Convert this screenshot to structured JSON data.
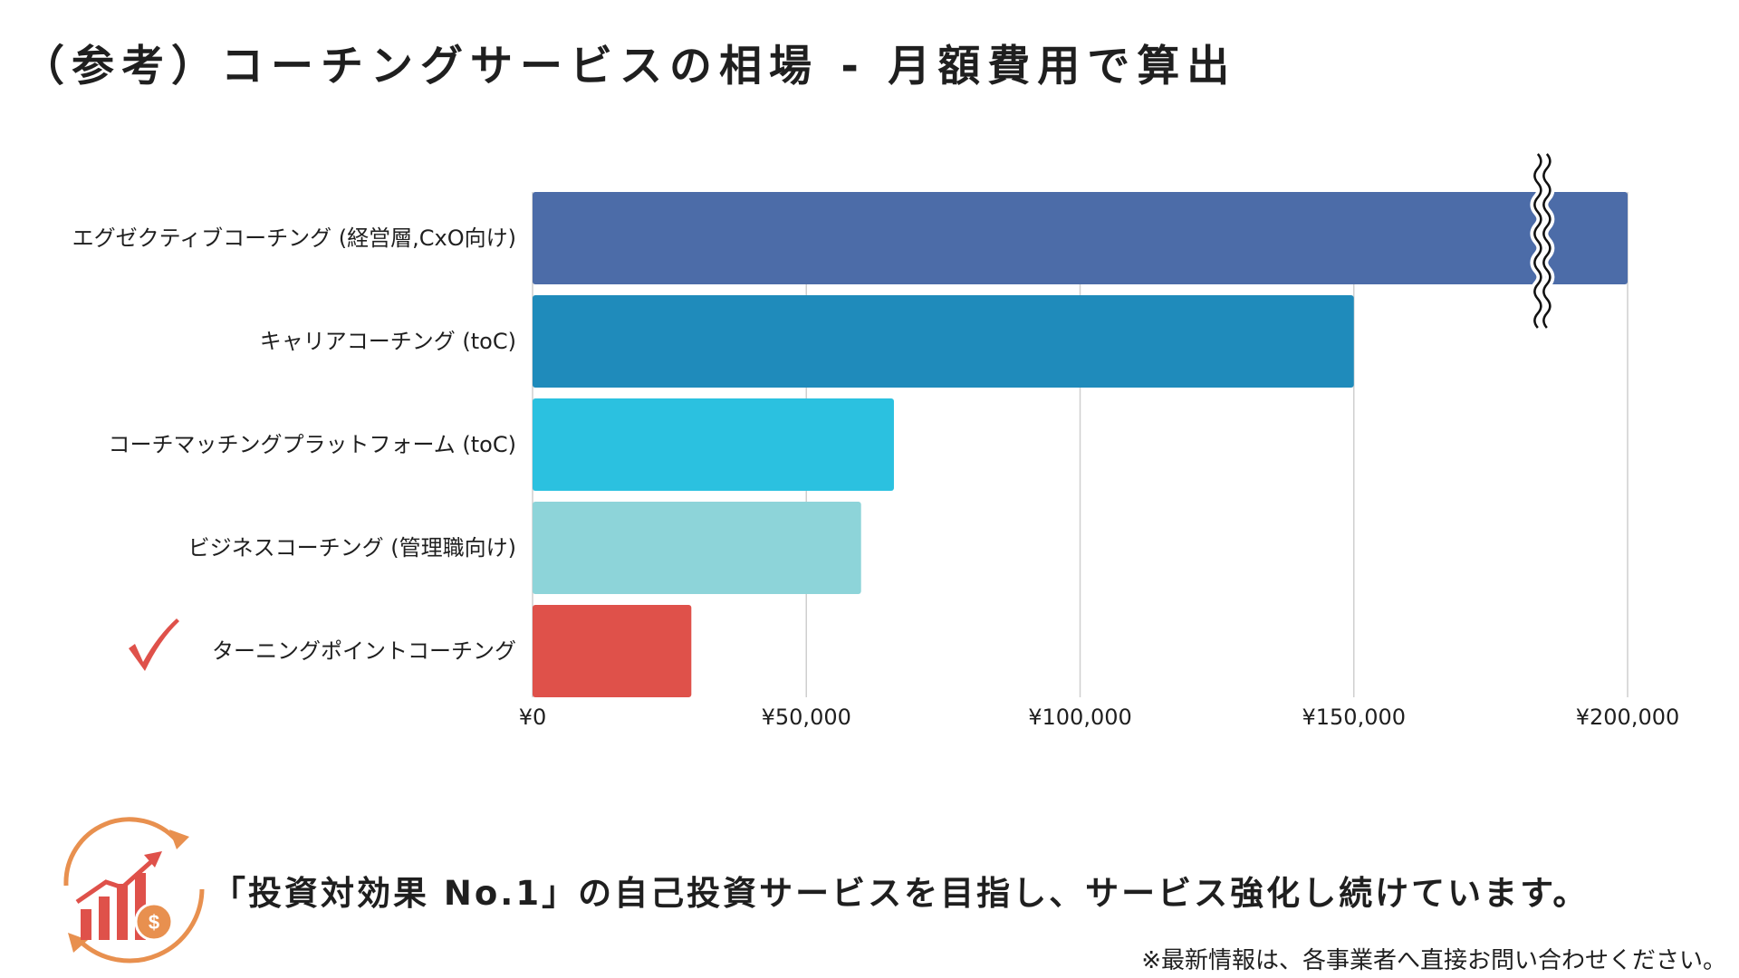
{
  "title": "（参考）コーチングサービスの相場 - 月額費用で算出",
  "chart_data": {
    "type": "bar",
    "orientation": "horizontal",
    "categories": [
      "エグゼクティブコーチング (経営層,CxO向け)",
      "キャリアコーチング (toC)",
      "コーチマッチングプラットフォーム (toC)",
      "ビジネスコーチング (管理職向け)",
      "ターニングポイントコーチング"
    ],
    "values": [
      200000,
      150000,
      66000,
      60000,
      29000
    ],
    "colors": [
      "#4c6ca8",
      "#1f8bbb",
      "#2bc1e0",
      "#8dd4d9",
      "#df514a"
    ],
    "xlim": [
      0,
      200000
    ],
    "xticks": [
      0,
      50000,
      100000,
      150000,
      200000
    ],
    "xtick_labels": [
      "¥0",
      "¥50,000",
      "¥100,000",
      "¥150,000",
      "¥200,000"
    ],
    "grid": true,
    "axis_break_on": "エグゼクティブコーチング (経営層,CxO向け)",
    "highlighted_category": "ターニングポイントコーチング",
    "highlight_icon": "checkmark-icon"
  },
  "footer": {
    "tagline": "「投資対効果 No.1」の自己投資サービスを目指し、サービス強化し続けています。",
    "footnote": "※最新情報は、各事業者へ直接お問い合わせください。",
    "icon": "growth-chart-coin-icon",
    "icon_color": "#e8904f",
    "icon_accent_color": "#df514a"
  }
}
